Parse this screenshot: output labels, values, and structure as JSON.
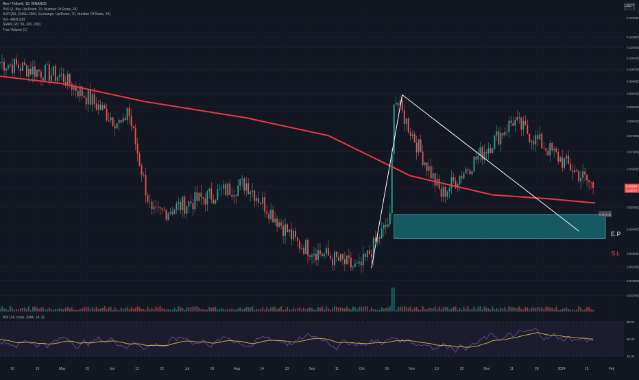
{
  "legend": {
    "title": "Ren / Tether6, 1D, BINANCE",
    "indicators": [
      "PVP (1, Bar, Up/Down, 70, Number Of Rows, 24)",
      "SVP (AS, ENSU-2000, Exchange, Up/Down, 70, Number Of Rows, 24)",
      "Vol - REN (20)",
      "SMAS (20, 50, 100, 200)",
      "True Volume (1)"
    ]
  },
  "currency_button": "USDT",
  "price_axis": {
    "labels": [
      "0.125000",
      "0.115000",
      "0.110000",
      "0.105000",
      "0.100000",
      "0.095000",
      "0.090000",
      "0.085000",
      "0.080000",
      "0.075000",
      "0.070000",
      "0.065000",
      "0.060000",
      "0.055000",
      "0.050000",
      "0.045000",
      "0.042500",
      "0.040000",
      "0.037500",
      "0.035000"
    ],
    "current_price": "0.05994",
    "current_price_sub": "13:28:19"
  },
  "annotations": {
    "ep": "E.P",
    "sl": "S.L",
    "marker": "0.4(-8.4)"
  },
  "rsi": {
    "label": "RSI (14, close, SMA, 14, 2)",
    "levels": [
      "80.00",
      "60.00",
      "20.00"
    ]
  },
  "time_axis": {
    "labels": [
      "10",
      "19",
      "May",
      "15",
      "Jun",
      "12",
      "21",
      "Jul",
      "18",
      "Aug",
      "14",
      "23",
      "Sep",
      "11",
      "Oct",
      "16",
      "Nov",
      "13",
      "22",
      "Dec",
      "11",
      "28",
      "2024",
      "15",
      "Feb"
    ]
  },
  "colors": {
    "background": "#131722",
    "up": "#26a69a",
    "down": "#ef5350",
    "sma": "#f23645",
    "zone": "#1b8f97",
    "rsi_line": "#7e57c2",
    "rsi_ma": "#c9b23d"
  },
  "chart_data": {
    "type": "candlestick",
    "title": "Ren / Tether6, 1D, BINANCE",
    "y_scale": "log",
    "ylim": [
      0.0355,
      0.128
    ],
    "x_range_days": [
      0,
      304
    ],
    "days_shown": "Apr 10 2023 to Feb 8 2024",
    "segments": [
      {
        "from_day": 0,
        "to_day": 30,
        "start": 0.103,
        "end": 0.097,
        "range": [
          0.094,
          0.118
        ]
      },
      {
        "from_day": 30,
        "to_day": 60,
        "start": 0.097,
        "end": 0.078,
        "range": [
          0.074,
          0.098
        ]
      },
      {
        "from_day": 60,
        "to_day": 62,
        "start": 0.078,
        "end": 0.085,
        "range": [
          0.076,
          0.089
        ]
      },
      {
        "from_day": 62,
        "to_day": 74,
        "start": 0.085,
        "end": 0.053,
        "range": [
          0.048,
          0.087
        ]
      },
      {
        "from_day": 74,
        "to_day": 120,
        "start": 0.053,
        "end": 0.061,
        "range": [
          0.051,
          0.071
        ]
      },
      {
        "from_day": 120,
        "to_day": 145,
        "start": 0.061,
        "end": 0.047,
        "range": [
          0.042,
          0.063
        ]
      },
      {
        "from_day": 145,
        "to_day": 175,
        "start": 0.047,
        "end": 0.042,
        "range": [
          0.041,
          0.05
        ]
      },
      {
        "from_day": 175,
        "to_day": 190,
        "start": 0.042,
        "end": 0.052,
        "range": [
          0.041,
          0.054
        ]
      },
      {
        "from_day": 190,
        "to_day": 192,
        "start": 0.052,
        "end": 0.089,
        "range": [
          0.05,
          0.091
        ]
      },
      {
        "from_day": 192,
        "to_day": 215,
        "start": 0.089,
        "end": 0.058,
        "range": [
          0.052,
          0.09
        ]
      },
      {
        "from_day": 215,
        "to_day": 250,
        "start": 0.058,
        "end": 0.08,
        "range": [
          0.055,
          0.082
        ]
      },
      {
        "from_day": 250,
        "to_day": 290,
        "start": 0.08,
        "end": 0.0599,
        "range": [
          0.055,
          0.082
        ]
      }
    ],
    "sma_200": [
      {
        "day": 0,
        "value": 0.097
      },
      {
        "day": 30,
        "value": 0.094
      },
      {
        "day": 70,
        "value": 0.087
      },
      {
        "day": 120,
        "value": 0.081
      },
      {
        "day": 160,
        "value": 0.075
      },
      {
        "day": 200,
        "value": 0.063
      },
      {
        "day": 240,
        "value": 0.058
      },
      {
        "day": 268,
        "value": 0.057
      },
      {
        "day": 290,
        "value": 0.056
      }
    ],
    "trendlines": [
      {
        "from": {
          "day": 181,
          "value": 0.0422
        },
        "to": {
          "day": 196,
          "value": 0.0895
        }
      },
      {
        "from": {
          "day": 196,
          "value": 0.0895
        },
        "to": {
          "day": 282,
          "value": 0.0496
        }
      }
    ],
    "entry_zone": {
      "from_day": 192,
      "to_day": 295,
      "high": 0.0532,
      "low": 0.048
    },
    "rsi_range": [
      20,
      80
    ]
  }
}
